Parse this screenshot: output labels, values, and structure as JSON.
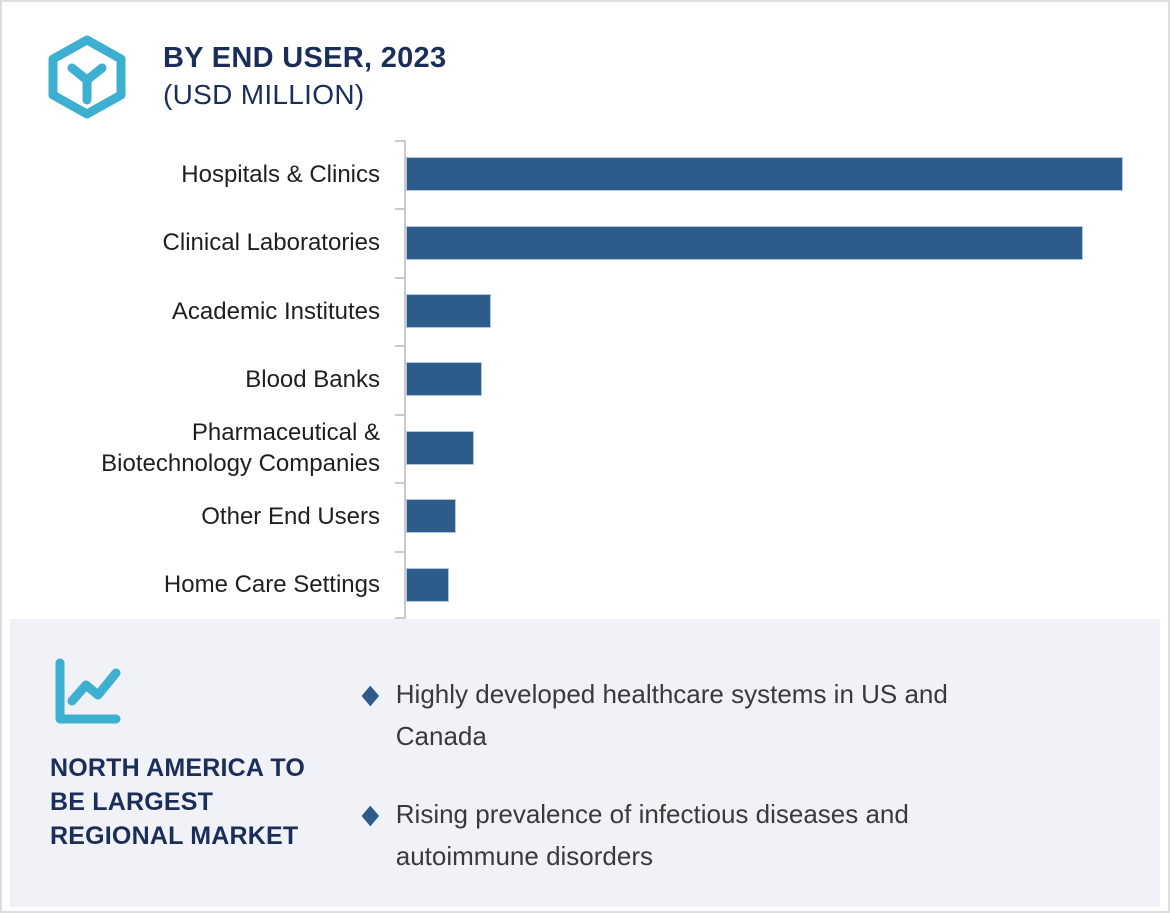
{
  "header": {
    "title_line1": "BY END USER, 2023",
    "title_line2": "(USD MILLION)",
    "logo_icon": "hexagon-cube-icon"
  },
  "chart_data": {
    "type": "bar",
    "orientation": "horizontal",
    "title": "BY END USER, 2023 (USD MILLION)",
    "unit": "USD Million",
    "year": "2023",
    "categories": [
      "Hospitals & Clinics",
      "Clinical Laboratories",
      "Academic Institutes",
      "Blood Banks",
      "Pharmaceutical & Biotechnology Companies",
      "Other End Users",
      "Home Care Settings"
    ],
    "values_relative_to_max_pct": [
      100,
      94.5,
      11.9,
      10.6,
      9.4,
      7.1,
      5.9
    ],
    "bar_width_pct_of_plot": [
      94.1,
      88.9,
      11.2,
      10.0,
      8.9,
      6.6,
      5.6
    ],
    "value_axis_labels": "none (axis unlabeled, values not shown)",
    "data_labels": "none",
    "gridlines": false,
    "legend": "none",
    "bar_color": "#2d5c8c",
    "axis_color": "#c9cacc"
  },
  "insight_panel": {
    "icon": "trend-line-chart-icon",
    "heading": "NORTH AMERICA TO BE LARGEST REGIONAL MARKET",
    "heading_lines": [
      "NORTH AMERICA TO",
      "BE LARGEST",
      "REGIONAL MARKET"
    ],
    "bullet_symbol": "◆",
    "bullets": [
      "Highly developed healthcare systems in US and Canada",
      "Rising prevalence of infectious diseases and autoimmune disorders"
    ]
  },
  "colors": {
    "accent_cyan": "#3dafd0",
    "navy": "#1b2e5a",
    "bar_blue": "#2d5c8c",
    "panel_bg": "#f1f2f7",
    "axis_gray": "#c9cacc"
  }
}
